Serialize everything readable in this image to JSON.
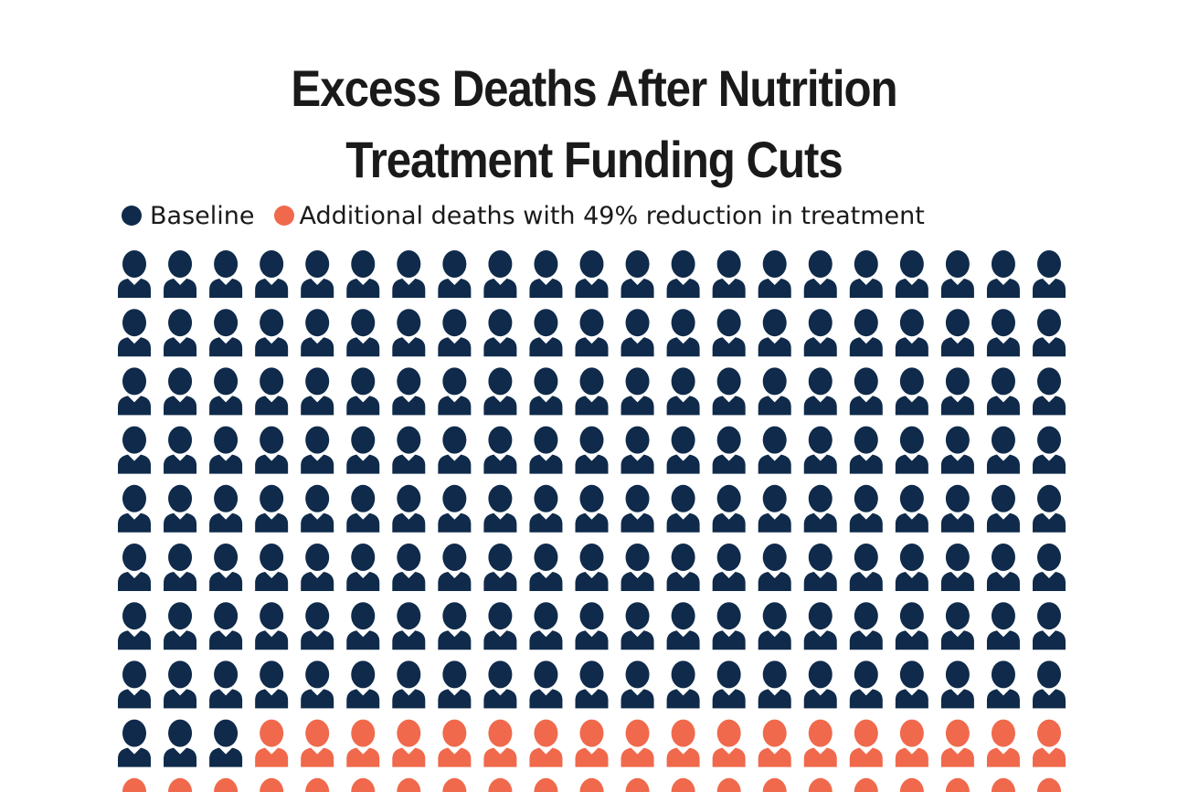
{
  "chart_data": {
    "type": "waffle",
    "title_lines": [
      "Excess Deaths After Nutrition",
      "Treatment Funding Cuts"
    ],
    "legend": [
      {
        "label": "Baseline",
        "color": "#0f2a4a"
      },
      {
        "label": "Additional deaths with 49% reduction in treatment",
        "color": "#f0694c"
      }
    ],
    "columns": 21,
    "series": [
      {
        "name": "Baseline",
        "count": 171,
        "color": "#0f2a4a"
      },
      {
        "name": "Additional deaths with 49% reduction in treatment",
        "count": 39,
        "color": "#f0694c"
      }
    ],
    "visible_rows": 10
  }
}
